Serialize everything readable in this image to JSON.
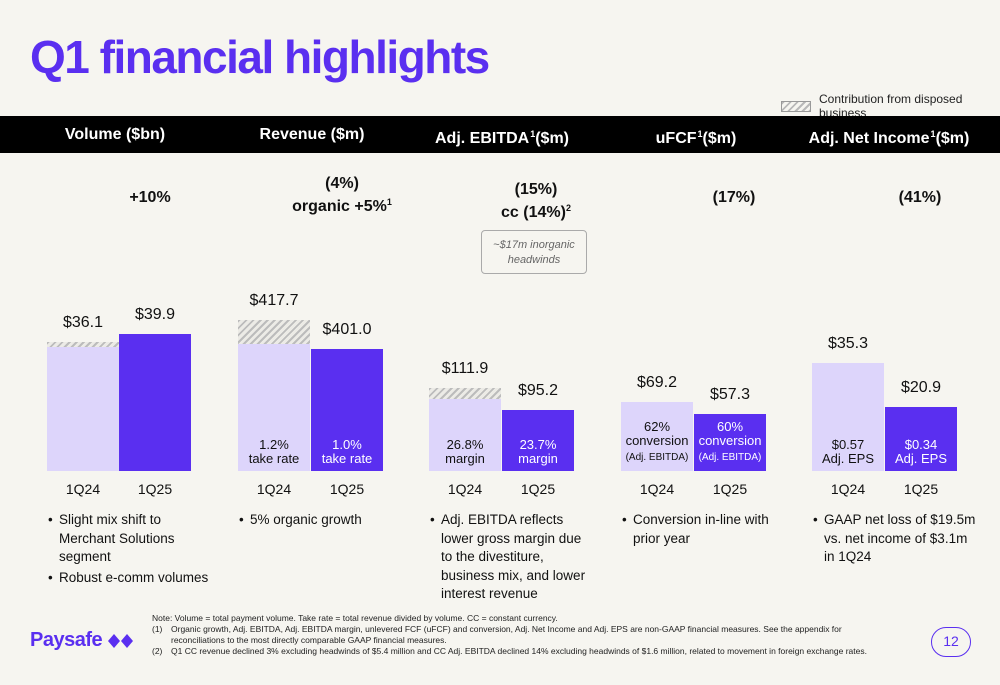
{
  "title": "Q1 financial highlights",
  "legend": {
    "label": "Contribution from disposed business"
  },
  "colors": {
    "accent": "#5a2ff0",
    "light_bar": "#ddd5fb",
    "header_bg": "#000000"
  },
  "callout": {
    "line1": "~$17m inorganic",
    "line2": "headwinds"
  },
  "chart_data": [
    {
      "type": "bar",
      "title": "Volume ($bn)",
      "growth_line1": "+10%",
      "growth_line2": "",
      "growth_sup": "",
      "categories": [
        "1Q24",
        "1Q25"
      ],
      "values": [
        36.1,
        39.9
      ],
      "value_labels": [
        "$36.1",
        "$39.9"
      ],
      "disposed_contribution": [
        true,
        false
      ],
      "in_bar_labels": [
        [
          "",
          ""
        ],
        [
          "",
          ""
        ]
      ],
      "in_bar_notes": [
        "",
        ""
      ],
      "bullets": [
        "Slight mix shift to Merchant Solutions segment",
        "Robust e-comm volumes"
      ]
    },
    {
      "type": "bar",
      "title": "Revenue ($m)",
      "growth_line1": "(4%)",
      "growth_line2": "organic +5%",
      "growth_sup": "1",
      "categories": [
        "1Q24",
        "1Q25"
      ],
      "values": [
        417.7,
        401.0
      ],
      "value_labels": [
        "$417.7",
        "$401.0"
      ],
      "disposed_contribution": [
        true,
        false
      ],
      "in_bar_labels": [
        [
          "1.2%",
          "take rate"
        ],
        [
          "1.0%",
          "take rate"
        ]
      ],
      "in_bar_notes": [
        "",
        ""
      ],
      "bullets": [
        "5% organic growth"
      ]
    },
    {
      "type": "bar",
      "title": "Adj. EBITDA",
      "title_sup": "1",
      "title_unit": "($m)",
      "growth_line1": "(15%)",
      "growth_line2": "cc (14%)",
      "growth_sup": "2",
      "categories": [
        "1Q24",
        "1Q25"
      ],
      "values": [
        111.9,
        95.2
      ],
      "value_labels": [
        "$111.9",
        "$95.2"
      ],
      "disposed_contribution": [
        true,
        false
      ],
      "in_bar_labels": [
        [
          "26.8%",
          "margin"
        ],
        [
          "23.7%",
          "margin"
        ]
      ],
      "in_bar_notes": [
        "",
        ""
      ],
      "bullets": [
        "Adj. EBITDA reflects lower gross margin due to the divestiture, business mix, and lower interest revenue"
      ]
    },
    {
      "type": "bar",
      "title": "uFCF",
      "title_sup": "1",
      "title_unit": "($m)",
      "growth_line1": "(17%)",
      "growth_line2": "",
      "growth_sup": "",
      "categories": [
        "1Q24",
        "1Q25"
      ],
      "values": [
        69.2,
        57.3
      ],
      "value_labels": [
        "$69.2",
        "$57.3"
      ],
      "disposed_contribution": [
        false,
        false
      ],
      "in_bar_labels": [
        [
          "62%",
          "conversion"
        ],
        [
          "60%",
          "conversion"
        ]
      ],
      "in_bar_notes": [
        "(Adj. EBITDA)",
        "(Adj. EBITDA)"
      ],
      "bullets": [
        "Conversion in-line with prior year"
      ]
    },
    {
      "type": "bar",
      "title": "Adj. Net Income",
      "title_sup": "1",
      "title_unit": "($m)",
      "growth_line1": "(41%)",
      "growth_line2": "",
      "growth_sup": "",
      "categories": [
        "1Q24",
        "1Q25"
      ],
      "values": [
        35.3,
        20.9
      ],
      "value_labels": [
        "$35.3",
        "$20.9"
      ],
      "disposed_contribution": [
        false,
        false
      ],
      "in_bar_labels": [
        [
          "$0.57",
          "Adj. EPS"
        ],
        [
          "$0.34",
          "Adj. EPS"
        ]
      ],
      "in_bar_notes": [
        "",
        ""
      ],
      "bullets": [
        "GAAP net loss of $19.5m vs. net income of $3.1m in 1Q24"
      ]
    }
  ],
  "notes": {
    "main": "Note: Volume = total payment volume. Take rate = total revenue divided by volume. CC = constant currency.",
    "items": [
      {
        "num": "(1)",
        "text": "Organic growth, Adj. EBITDA, Adj. EBITDA margin, unlevered FCF (uFCF) and conversion, Adj. Net Income and Adj. EPS are non-GAAP financial measures. See the appendix for reconciliations to the most directly comparable GAAP financial measures."
      },
      {
        "num": "(2)",
        "text": "Q1 CC revenue declined 3% excluding headwinds of $5.4 million and CC Adj. EBITDA declined 14% excluding headwinds of $1.6 million, related to movement in foreign exchange rates."
      }
    ]
  },
  "brand": {
    "name": "Paysafe"
  },
  "page_number": "12"
}
